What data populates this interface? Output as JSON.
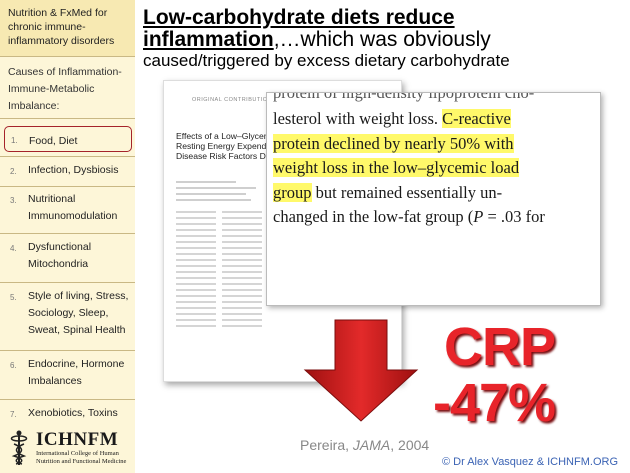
{
  "sidebar": {
    "title": "Nutrition & FxMed for chronic immune-inflammatory disorders",
    "subtitle": "Causes of Inflammation-Immune-Metabolic Imbalance:",
    "items": [
      {
        "num": "1.",
        "label": "Food, Diet"
      },
      {
        "num": "2.",
        "label": "Infection, Dysbiosis"
      },
      {
        "num": "3.",
        "label": "Nutritional Immunomodulation"
      },
      {
        "num": "4.",
        "label": "Dysfunctional Mitochondria"
      },
      {
        "num": "5.",
        "label": "Style of living, Stress, Sociology, Sleep, Sweat, Spinal Health"
      },
      {
        "num": "6.",
        "label": "Endocrine, Hormone Imbalances"
      },
      {
        "num": "7.",
        "label": "Xenobiotics, Toxins"
      }
    ],
    "logo": {
      "word": "ICHNFM",
      "sub": "International College of Human Nutrition and Functional Medicine"
    }
  },
  "heading": {
    "line1": "Low-carbohydrate diets reduce",
    "line2_bold": "inflammation",
    "line2_rest": ",…which was obviously",
    "line3": "caused/triggered by excess dietary carbohydrate"
  },
  "paper": {
    "tag": "ORIGINAL CONTRIBUTION",
    "title": "Effects of a Low–Glycemic Load Diet on Resting Energy Expenditure and Heart Disease Risk Factors During Weight Loss"
  },
  "zoom": {
    "cut_line": "protein of high-density lipoprotein cho-",
    "pre": "lesterol with weight loss. ",
    "highlight1": "C-reactive",
    "highlight2": "protein declined by nearly 50% with",
    "highlight3": "weight loss in the low–glycemic load",
    "highlight4": "group",
    "post": " but remained essentially un-",
    "line6": "changed in the low-fat group (",
    "line6_p": "P",
    "line6_rest": " = .03 for"
  },
  "crp": {
    "label": "CRP",
    "value": "-47%"
  },
  "citation": {
    "author": "Pereira, ",
    "journal": "JAMA",
    "year": ", 2004"
  },
  "copyright": "© Dr Alex Vasquez & ICHNFM.ORG",
  "colors": {
    "accent_red": "#e8242a",
    "highlight": "#fff96a",
    "sidebar_bg": "#fdf6d8",
    "link_blue": "#3b63b4"
  }
}
